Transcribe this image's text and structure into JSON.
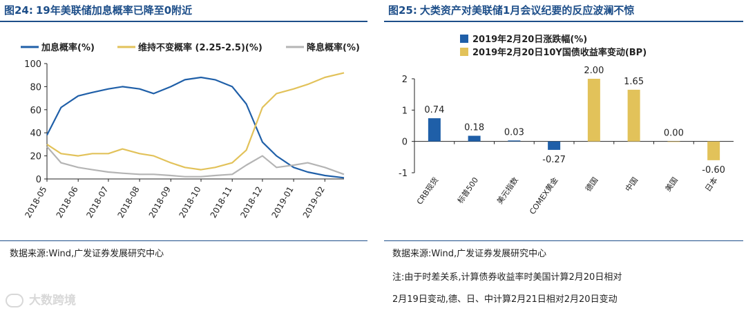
{
  "left": {
    "fig_no": "图24:",
    "title": "19年美联储加息概率已降至0附近",
    "source": "数据来源:Wind,广发证券发展研究中心",
    "chart_data": {
      "type": "line",
      "title": "19年美联储加息概率已降至0附近",
      "xlabel": "",
      "ylabel": "",
      "ylim": [
        0,
        100
      ],
      "yticks": [
        0,
        20,
        40,
        60,
        80,
        100
      ],
      "xticks": [
        "2018-05",
        "2018-06",
        "2018-07",
        "2018-08",
        "2018-09",
        "2018-10",
        "2018-11",
        "2018-12",
        "2019-01",
        "2019-02"
      ],
      "legend_position": "top",
      "x": [
        "2018-05-01",
        "2018-05-15",
        "2018-06-01",
        "2018-06-15",
        "2018-07-01",
        "2018-07-15",
        "2018-08-01",
        "2018-08-15",
        "2018-09-01",
        "2018-09-15",
        "2018-10-01",
        "2018-10-15",
        "2018-11-01",
        "2018-11-15",
        "2018-12-01",
        "2018-12-15",
        "2019-01-01",
        "2019-01-15",
        "2019-02-01",
        "2019-02-20"
      ],
      "series": [
        {
          "name": "加息概率(%)",
          "color": "#1f5fa8",
          "values": [
            38,
            62,
            72,
            75,
            78,
            80,
            78,
            74,
            80,
            86,
            88,
            86,
            80,
            65,
            32,
            20,
            10,
            6,
            3,
            1
          ]
        },
        {
          "name": "维持不变概率 (2.25-2.5)(%)",
          "color": "#e2c25a",
          "values": [
            30,
            22,
            20,
            22,
            22,
            26,
            22,
            20,
            14,
            10,
            8,
            10,
            14,
            25,
            62,
            74,
            78,
            82,
            88,
            92
          ]
        },
        {
          "name": "降息概率(%)",
          "color": "#b4b4b4",
          "values": [
            28,
            14,
            10,
            8,
            6,
            5,
            4,
            4,
            3,
            2,
            2,
            3,
            4,
            12,
            20,
            10,
            12,
            14,
            10,
            4
          ]
        }
      ]
    }
  },
  "right": {
    "fig_no": "图25:",
    "title": "大类资产对美联储1月会议纪要的反应波澜不惊",
    "source": "数据来源:Wind,广发证券发展研究中心",
    "note_line1": "注:由于时差关系,计算债券收益率时美国计算2月20日相对",
    "note_line2": "2月19日变动,德、日、中计算2月21日相对2月20日变动",
    "chart_data": {
      "type": "bar",
      "title": "大类资产对美联储1月会议纪要的反应波澜不惊",
      "ylim": [
        -1,
        2
      ],
      "yticks": [
        -1,
        0,
        1,
        2
      ],
      "legend_position": "top-left",
      "categories": [
        "CRB现货",
        "标普500",
        "美元指数",
        "COMEX黄金",
        "德国",
        "中国",
        "美国",
        "日本"
      ],
      "series": [
        {
          "name": "2019年2月20日涨跌幅(%)",
          "color": "#1f5fa8",
          "values": [
            0.74,
            0.18,
            0.03,
            -0.27,
            null,
            null,
            null,
            null
          ]
        },
        {
          "name": "2019年2月20日10Y国债收益率变动(BP)",
          "color": "#e2c25a",
          "values": [
            null,
            null,
            null,
            null,
            2.0,
            1.65,
            0.0,
            -0.6
          ]
        }
      ],
      "data_labels": [
        "0.74",
        "0.18",
        "0.03",
        "-0.27",
        "2.00",
        "1.65",
        "0.00",
        "-0.60"
      ]
    }
  },
  "watermark": "大数跨境"
}
